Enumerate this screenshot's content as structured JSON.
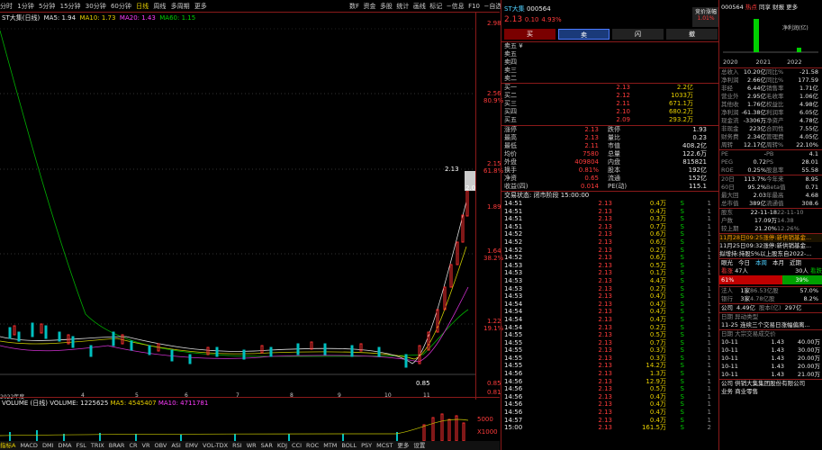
{
  "toolbar": {
    "periods": [
      "分时",
      "1分钟",
      "5分钟",
      "15分钟",
      "30分钟",
      "60分钟",
      "日线",
      "周线",
      "多周期",
      "更多"
    ],
    "right_tabs": [
      "数F",
      "资金",
      "多股",
      "统计",
      "画线",
      "标记",
      "−信息",
      "F10",
      "−自选"
    ]
  },
  "chart": {
    "title": "ST大集(日线)",
    "ma_label": "MA5: 1.94",
    "ma10": "MA10: 1.73",
    "ma20": "MA20: 1.43",
    "ma60": "MA60: 1.15",
    "y_labels": [
      "2.98",
      "2.56",
      "80.9%",
      "2.15",
      "61.8%",
      "1.89",
      "1.64",
      "38.2%",
      "1.22",
      "19.1%",
      "0.85",
      "0.81"
    ],
    "high_label": "2.13",
    "cur_label": "2.01",
    "low_label": "0.85",
    "x_labels": [
      "2022年度",
      "4",
      "5",
      "6",
      "7",
      "8",
      "9",
      "10",
      "11"
    ],
    "candles_bg": "#000000"
  },
  "volume": {
    "title": "VOLUME (日线)",
    "vol": "VOLUME: 1225625",
    "ma5": "MA5: 4545407",
    "ma10": "MA10: 4711781",
    "y_labels": [
      "5000",
      "X1000"
    ]
  },
  "indicator_tabs": [
    "指标A",
    "MACD",
    "DMI",
    "DMA",
    "FSL",
    "TRIX",
    "BRAR",
    "CR",
    "VR",
    "OBV",
    "ASI",
    "EMV",
    "VOL-TDX",
    "RSI",
    "WR",
    "SAR",
    "KDJ",
    "CCI",
    "ROC",
    "MTM",
    "BOLL",
    "PSY",
    "MCST",
    "更多",
    "设置"
  ],
  "quote": {
    "name": "ST大集",
    "code": "000564",
    "price": "2.13",
    "chg": "0.10",
    "pct": "4.93%",
    "tag": "竞价涨幅",
    "tag_val": "1.01%",
    "buttons": [
      "买",
      "卖",
      "闪",
      "撤"
    ],
    "order_header": "卖五 ¥",
    "asks": [
      "卖五",
      "卖四",
      "卖三",
      "卖二",
      "卖一"
    ],
    "bids": [
      {
        "l": "买一",
        "p": "2.13",
        "v": "2.2亿"
      },
      {
        "l": "买二",
        "p": "2.12",
        "v": "1033万"
      },
      {
        "l": "买三",
        "p": "2.11",
        "v": "671.1万"
      },
      {
        "l": "买四",
        "p": "2.10",
        "v": "680.2万"
      },
      {
        "l": "买五",
        "p": "2.09",
        "v": "293.2万"
      }
    ],
    "stats": [
      [
        "涨停",
        "2.13",
        "跌停",
        "1.93"
      ],
      [
        "最高",
        "2.13",
        "量比",
        "0.23"
      ],
      [
        "最低",
        "2.11",
        "市值",
        "408.2亿"
      ],
      [
        "均价",
        "7580",
        "总量",
        "122.6万"
      ],
      [
        "外盘",
        "409804",
        "内盘",
        "815821"
      ],
      [
        "换手",
        "0.81%",
        "股本",
        "192亿"
      ],
      [
        "净资",
        "0.65",
        "流通",
        "152亿"
      ],
      [
        "收益(四)",
        "0.014",
        "PE(动)",
        "115.1"
      ]
    ],
    "status": "交易状态: 闭市阶段 15:00:00"
  },
  "ticks": [
    [
      "14:51",
      "2.13",
      "0.4万",
      "S",
      "1"
    ],
    [
      "14:51",
      "2.13",
      "0.4万",
      "S",
      "1"
    ],
    [
      "14:51",
      "2.13",
      "0.3万",
      "S",
      "1"
    ],
    [
      "14:51",
      "2.13",
      "0.7万",
      "S",
      "1"
    ],
    [
      "14:52",
      "2.13",
      "0.6万",
      "S",
      "1"
    ],
    [
      "14:52",
      "2.13",
      "0.6万",
      "S",
      "1"
    ],
    [
      "14:52",
      "2.13",
      "0.2万",
      "S",
      "1"
    ],
    [
      "14:52",
      "2.13",
      "0.6万",
      "S",
      "1"
    ],
    [
      "14:53",
      "2.13",
      "0.5万",
      "S",
      "1"
    ],
    [
      "14:53",
      "2.13",
      "0.1万",
      "S",
      "1"
    ],
    [
      "14:53",
      "2.13",
      "4.4万",
      "S",
      "1"
    ],
    [
      "14:53",
      "2.13",
      "0.2万",
      "S",
      "1"
    ],
    [
      "14:53",
      "2.13",
      "0.4万",
      "S",
      "1"
    ],
    [
      "14:54",
      "2.13",
      "0.4万",
      "S",
      "1"
    ],
    [
      "14:54",
      "2.13",
      "0.4万",
      "S",
      "1"
    ],
    [
      "14:54",
      "2.13",
      "0.4万",
      "S",
      "1"
    ],
    [
      "14:54",
      "2.13",
      "0.2万",
      "S",
      "1"
    ],
    [
      "14:55",
      "2.13",
      "0.5万",
      "S",
      "1"
    ],
    [
      "14:55",
      "2.13",
      "0.7万",
      "S",
      "1"
    ],
    [
      "14:55",
      "2.13",
      "0.3万",
      "S",
      "1"
    ],
    [
      "14:55",
      "2.13",
      "0.3万",
      "S",
      "1"
    ],
    [
      "14:55",
      "2.13",
      "14.2万",
      "S",
      "1"
    ],
    [
      "14:56",
      "2.13",
      "1.3万",
      "S",
      "1"
    ],
    [
      "14:56",
      "2.13",
      "12.9万",
      "S",
      "1"
    ],
    [
      "14:56",
      "2.13",
      "0.5万",
      "S",
      "1"
    ],
    [
      "14:56",
      "2.13",
      "0.4万",
      "S",
      "1"
    ],
    [
      "14:56",
      "2.13",
      "0.4万",
      "S",
      "1"
    ],
    [
      "14:56",
      "2.13",
      "0.4万",
      "S",
      "1"
    ],
    [
      "14:57",
      "2.13",
      "0.4万",
      "S",
      "1"
    ],
    [
      "15:00",
      "2.13",
      "161.5万",
      "S",
      "2"
    ]
  ],
  "right": {
    "code": "000564",
    "tag": "热点",
    "tabs": [
      "同享",
      "财报",
      "更多"
    ],
    "profit_label": "净利润(亿)",
    "years": [
      "2020",
      "2021",
      "2022"
    ],
    "metrics": [
      [
        "总收入",
        "10.20亿",
        "同比%",
        "-21.58"
      ],
      [
        "净利润",
        "2.66亿",
        "同比%",
        "177.59"
      ],
      [
        "非经",
        "6.44亿",
        "销售率",
        "1.71亿"
      ],
      [
        "营业外",
        "2.95亿",
        "毛收率",
        "1.06亿"
      ],
      [
        "其他收益",
        "1.76亿",
        "权益比",
        "4.98亿"
      ],
      [
        "净利润",
        "-61.38亿",
        "利润率",
        "6.05亿"
      ],
      [
        "现金流",
        "-3306万",
        "净资产",
        "4.78亿"
      ],
      [
        "非现金",
        "223亿",
        "合同性",
        "7.55亿"
      ],
      [
        "财务费",
        "2.34亿",
        "管理费",
        "4.05亿"
      ],
      [
        "周转",
        "12.17亿",
        "周转%",
        "22.10%"
      ]
    ],
    "valuation": [
      [
        "PE",
        "-",
        "PB",
        "4.1"
      ],
      [
        "PEG",
        "0.72",
        "PS",
        "28.01"
      ],
      [
        "ROE",
        "0.25%",
        "股息率",
        "55.58"
      ]
    ],
    "period": [
      [
        "20日",
        "113.7%",
        "今年来",
        "8.95"
      ],
      [
        "60日",
        "95.2%",
        "Beta值",
        "0.71"
      ],
      [
        "最大回",
        "2.03",
        "年最高",
        "4.68"
      ],
      [
        "总市值",
        "389亿",
        "流通值",
        "308.6"
      ]
    ],
    "events": [
      [
        "股东",
        "22-11-18",
        "22-11-10"
      ],
      [
        "户数",
        "17.09万",
        "14.38"
      ],
      [
        "较上期",
        "21.20%",
        "12.26%"
      ]
    ],
    "news": [
      "11月28日09:25涨停:新供销基金...",
      "11月25日09:32涨停:新供销基金...",
      "拟增持:持股5%以上股东自2022-..."
    ],
    "tabs2": [
      "眼光",
      "今日",
      "本周",
      "本月",
      "近期"
    ],
    "updown": {
      "up_label": "看涨",
      "up": "47人",
      "down_label": "看跌",
      "down": "30人",
      "up_pct": "61%",
      "down_pct": "39%"
    },
    "fund": [
      [
        "法人",
        "1家",
        "86.53亿股",
        "57.0%"
      ],
      [
        "银行",
        "3家",
        "4.78亿股",
        "8.2%"
      ]
    ],
    "zjc": [
      "公司",
      "4.49亿",
      "股本(亿)",
      "297亿"
    ],
    "dragon": {
      "title": "日期  异动类型",
      "rows": [
        [
          "11-25",
          "连续三个交易日涨幅偏离..."
        ]
      ]
    },
    "trade": {
      "title": "日期  大宗交易成交价",
      "rows": [
        [
          "10-11",
          "1.43",
          "40.00万"
        ],
        [
          "10-11",
          "1.43",
          "30.00万"
        ],
        [
          "10-11",
          "1.43",
          "20.00万"
        ],
        [
          "10-11",
          "1.43",
          "20.00万"
        ],
        [
          "10-11",
          "1.43",
          "21.00万"
        ]
      ]
    },
    "company": "公司  供销大集集团股份有限公司",
    "biz": "业务  商业零售"
  }
}
